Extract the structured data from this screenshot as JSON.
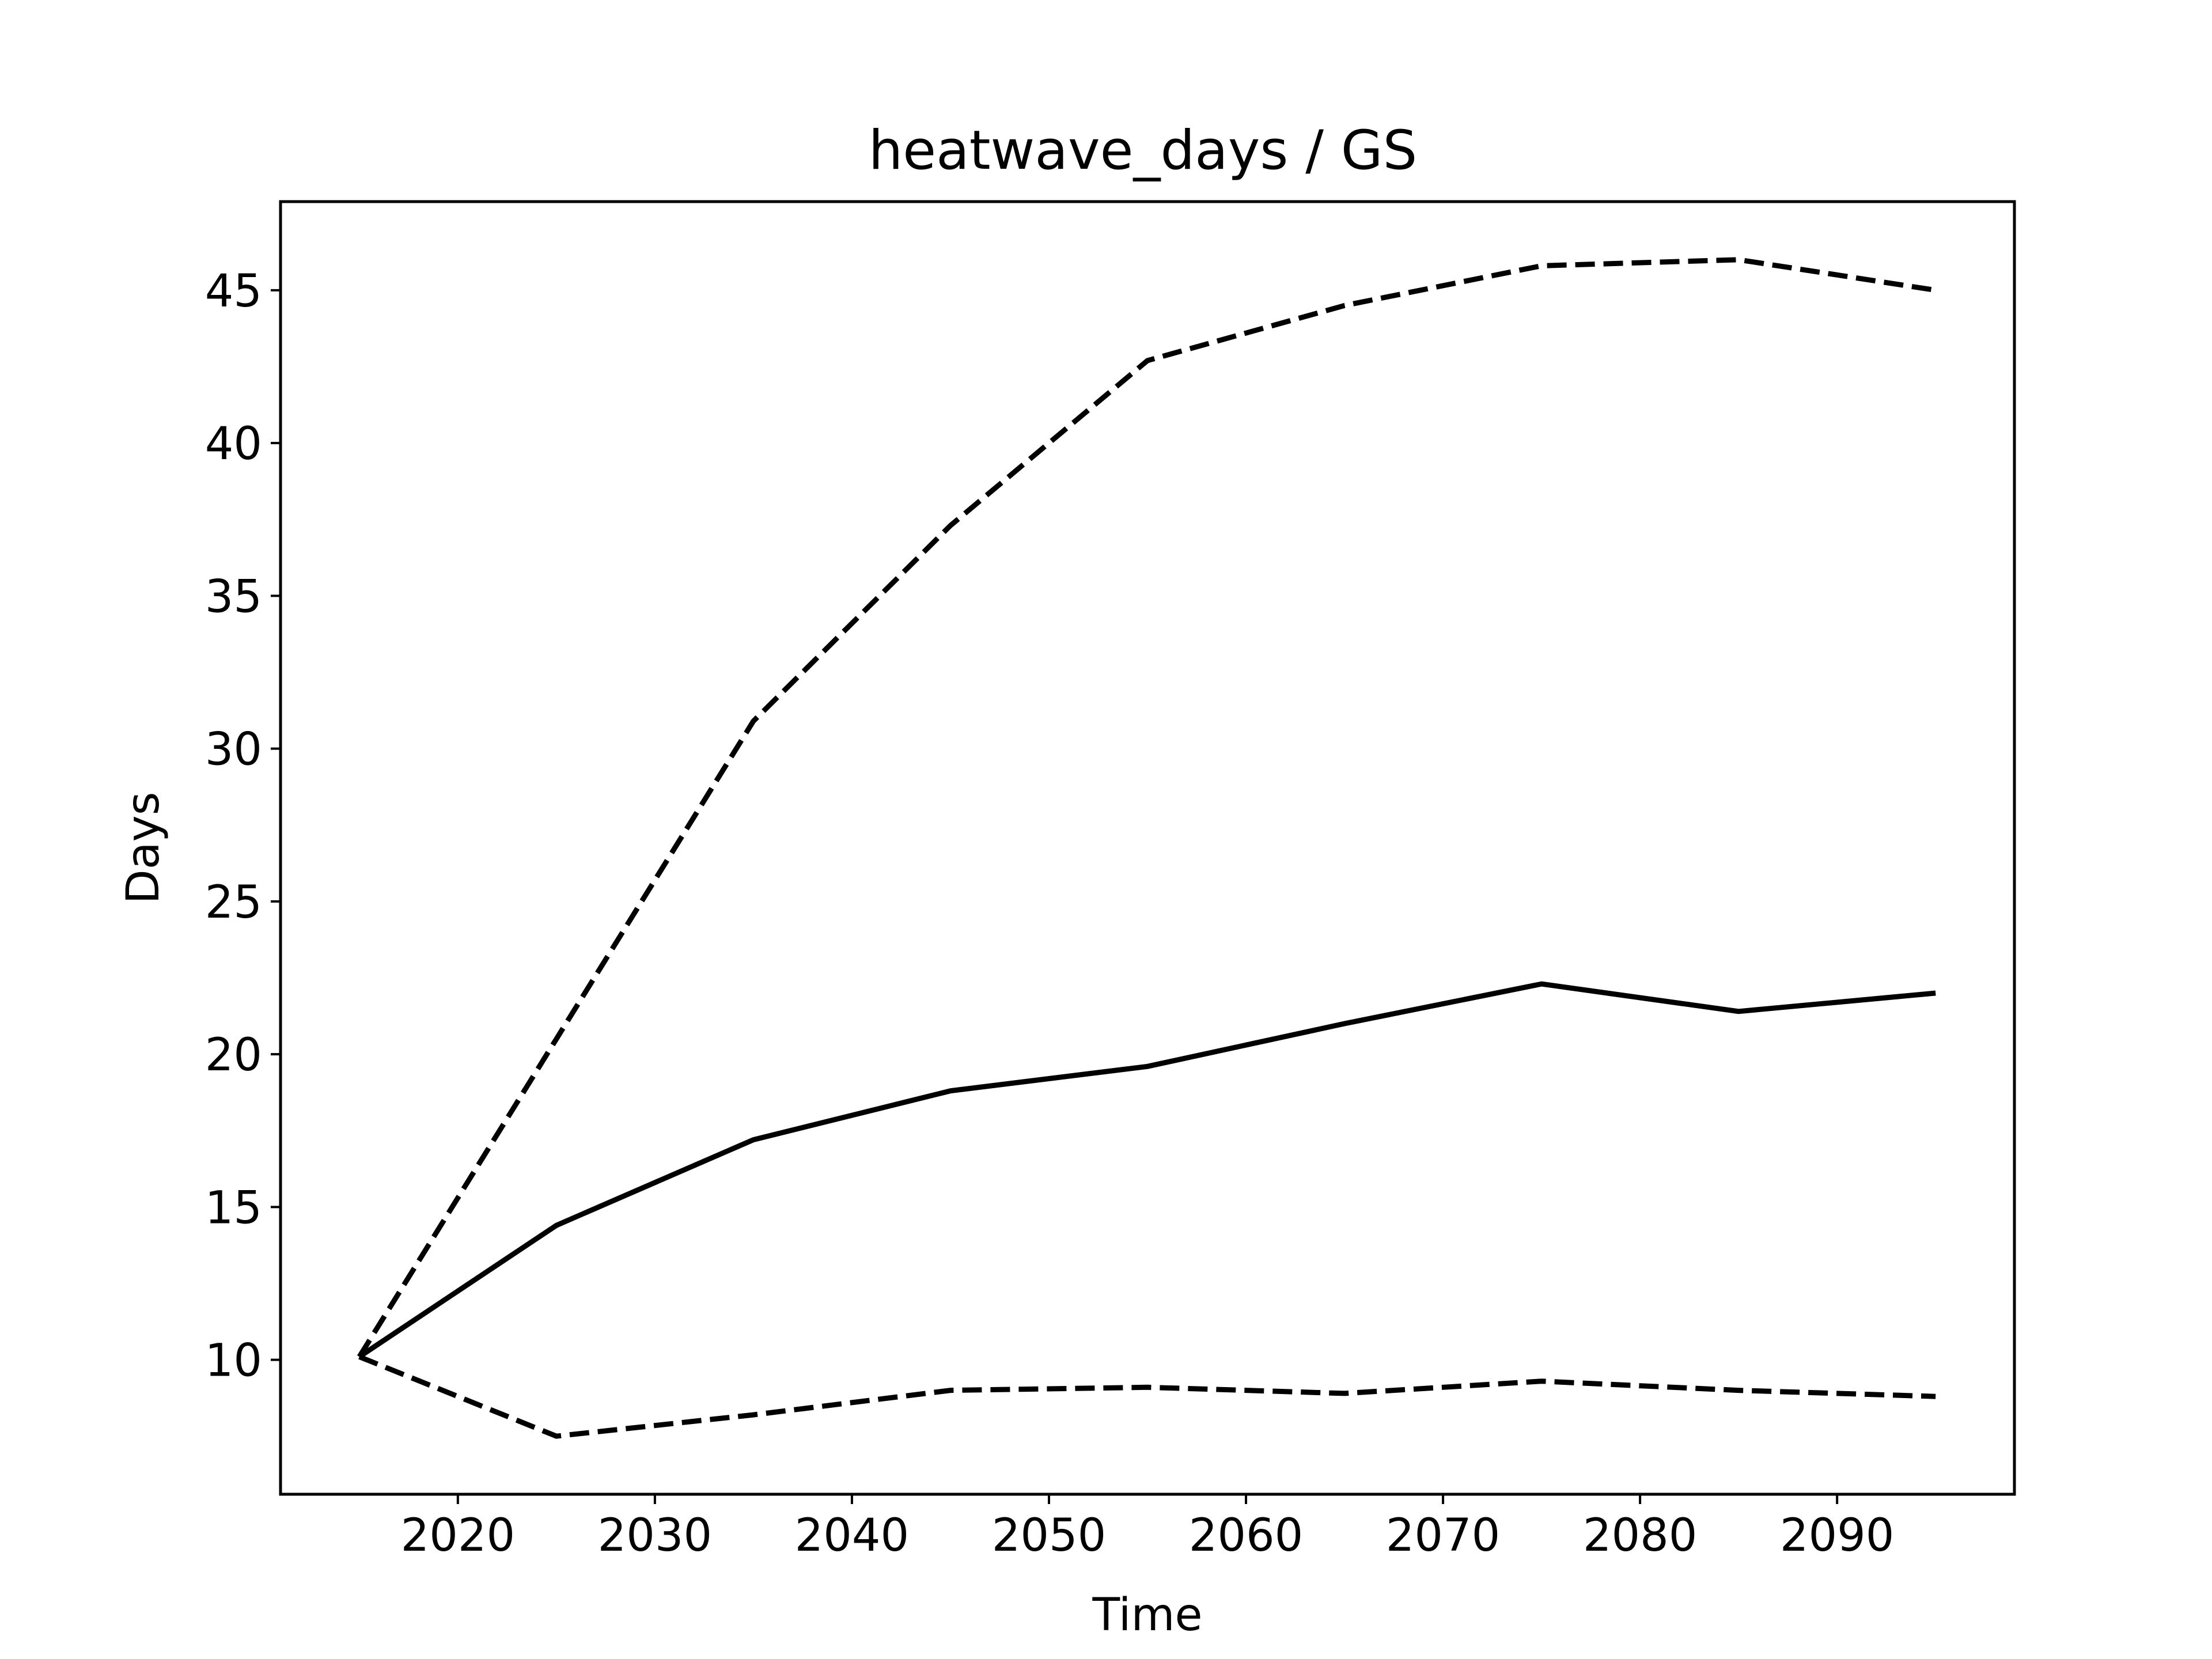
{
  "chart_data": {
    "type": "line",
    "title": "heatwave_days / GS",
    "xlabel": "Time",
    "ylabel": "Days",
    "xlim": [
      2011,
      2099
    ],
    "ylim": [
      5.6,
      47.9
    ],
    "xticks": [
      2020,
      2030,
      2040,
      2050,
      2060,
      2070,
      2080,
      2090
    ],
    "yticks": [
      10,
      15,
      20,
      25,
      30,
      35,
      40,
      45
    ],
    "grid": false,
    "line_color": "#000000",
    "x": [
      2015,
      2025,
      2035,
      2045,
      2055,
      2065,
      2075,
      2085,
      2095
    ],
    "series": [
      {
        "style": "solid",
        "values": [
          10.1,
          14.4,
          17.2,
          18.8,
          19.6,
          21.0,
          22.3,
          21.4,
          22.0
        ]
      },
      {
        "style": "dashed",
        "values": [
          10.1,
          20.5,
          30.9,
          37.3,
          42.7,
          44.5,
          45.8,
          46.0,
          45.0
        ]
      },
      {
        "style": "dashed",
        "values": [
          10.1,
          7.5,
          8.2,
          9.0,
          9.1,
          8.9,
          9.3,
          9.0,
          8.8
        ]
      }
    ]
  }
}
